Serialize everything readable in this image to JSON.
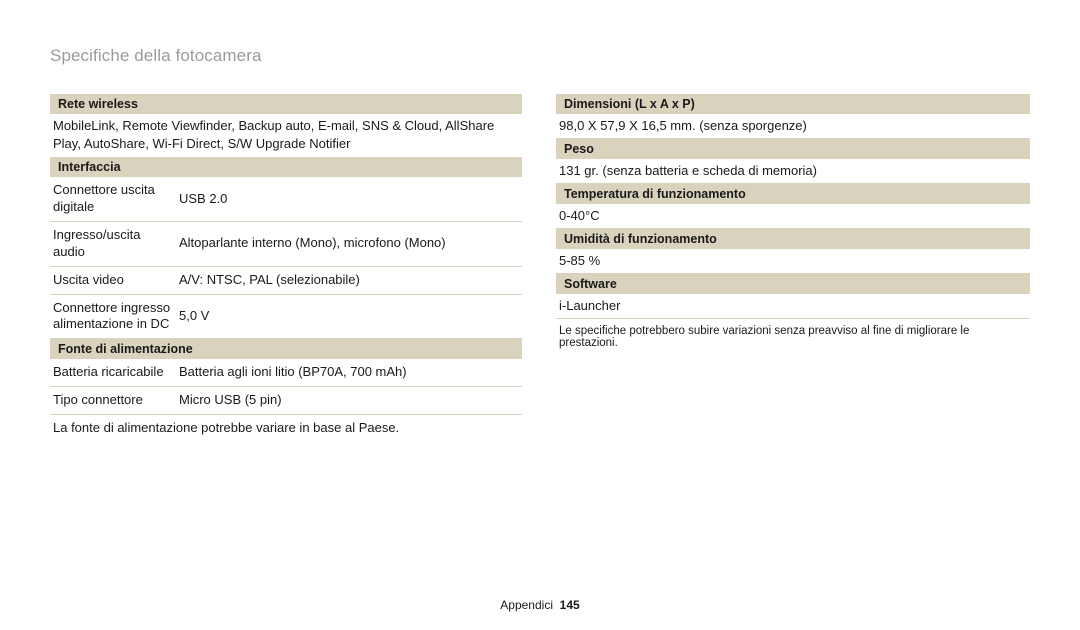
{
  "title": "Specifiche della fotocamera",
  "left": {
    "wireless": {
      "header": "Rete wireless",
      "text": "MobileLink, Remote Viewfinder, Backup auto, E-mail, SNS & Cloud, AllShare Play, AutoShare, Wi-Fi Direct, S/W Upgrade Notifier"
    },
    "interface": {
      "header": "Interfaccia",
      "rows": [
        {
          "label": "Connettore uscita digitale",
          "value": "USB 2.0"
        },
        {
          "label": "Ingresso/uscita audio",
          "value": "Altoparlante interno (Mono), microfono (Mono)"
        },
        {
          "label": "Uscita video",
          "value": "A/V: NTSC, PAL (selezionabile)"
        },
        {
          "label": "Connettore ingresso alimentazione in DC",
          "value": "5,0 V"
        }
      ]
    },
    "power": {
      "header": "Fonte di alimentazione",
      "rows": [
        {
          "label": "Batteria ricaricabile",
          "value": "Batteria agli ioni litio (BP70A, 700 mAh)"
        },
        {
          "label": "Tipo connettore",
          "value": "Micro USB (5 pin)"
        }
      ],
      "note": "La fonte di alimentazione potrebbe variare in base al Paese."
    }
  },
  "right": {
    "dimensions": {
      "header": "Dimensioni (L x A x P)",
      "value": "98,0 X 57,9 X 16,5 mm. (senza sporgenze)"
    },
    "weight": {
      "header": "Peso",
      "value": "131 gr. (senza batteria e scheda di memoria)"
    },
    "optemp": {
      "header": "Temperatura di funzionamento",
      "value": "0-40°C"
    },
    "ophum": {
      "header": "Umidità di funzionamento",
      "value": "5-85 %"
    },
    "software": {
      "header": "Software",
      "value": "i-Launcher"
    },
    "footnote": "Le specifiche potrebbero subire variazioni senza preavviso al fine di migliorare le prestazioni."
  },
  "footer": {
    "section": "Appendici",
    "page": "145"
  },
  "colors": {
    "header_bg": "#d9d2bd",
    "title_color": "#9b9b98",
    "rule": "#d7d1bd"
  }
}
